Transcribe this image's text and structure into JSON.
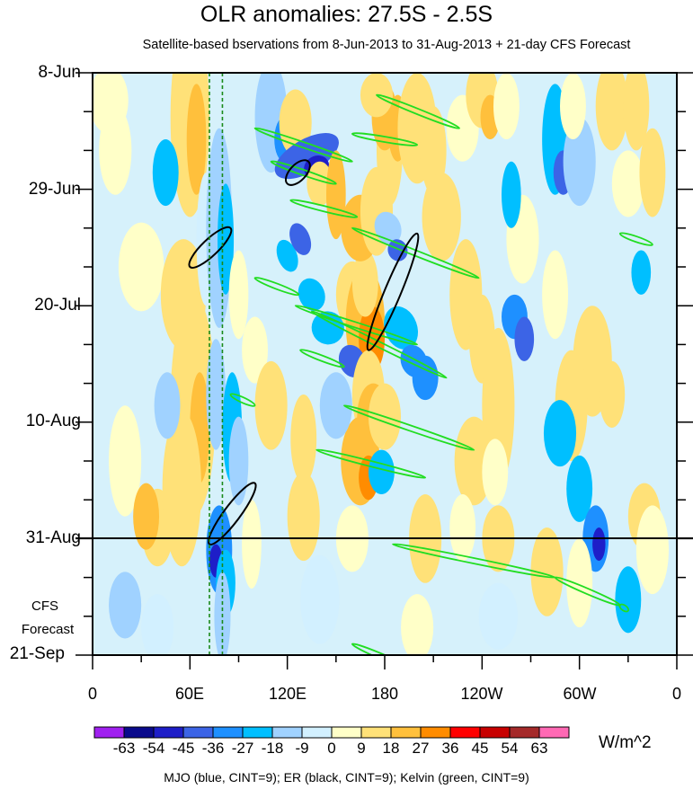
{
  "chart_data": {
    "type": "heatmap",
    "title": "OLR anomalies: 27.5S - 2.5S",
    "subtitle": "Satellite-based bservations from 8-Jun-2013 to 31-Aug-2013 + 21-day CFS Forecast",
    "y_ticks": [
      "8-Jun",
      "29-Jun",
      "20-Jul",
      "10-Aug",
      "31-Aug",
      "21-Sep"
    ],
    "x_ticks": [
      "0",
      "60E",
      "120E",
      "180",
      "120W",
      "60W",
      "0"
    ],
    "x_range_deg": [
      0,
      360
    ],
    "time_range": [
      "8-Jun-2013",
      "21-Sep-2013"
    ],
    "observation_end": "31-Aug",
    "forecast_label_line1": "CFS",
    "forecast_label_line2": "Forecast",
    "colorbar": {
      "levels": [
        "-63",
        "-54",
        "-45",
        "-36",
        "-27",
        "-18",
        "-9",
        "0",
        "9",
        "18",
        "27",
        "36",
        "45",
        "54",
        "63"
      ],
      "colors": [
        "#a020f0",
        "#0a0a8c",
        "#1e1ec8",
        "#3c64e6",
        "#1e90ff",
        "#00bfff",
        "#a0d2ff",
        "#d2f0ff",
        "#ffffc8",
        "#ffe178",
        "#ffc03c",
        "#ff8c00",
        "#ff0000",
        "#c80000",
        "#a52a2a",
        "#ff69b4"
      ],
      "units": "W/m^2"
    },
    "contour_note": "MJO (blue, CINT=9); ER (black, CINT=9); Kelvin (green, CINT=9)",
    "background_color": "#d6f1fb"
  }
}
